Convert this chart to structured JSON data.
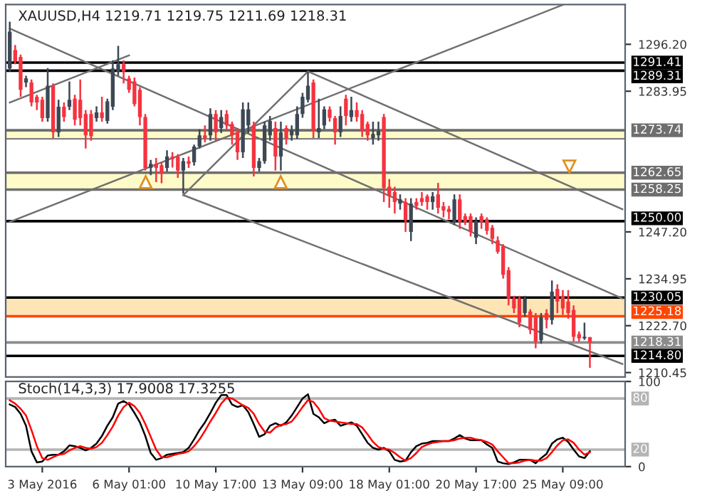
{
  "chart_data": [
    {
      "type": "candlestick",
      "title": "XAUUSD,H4 1219.71 1219.75 1211.69 1218.31",
      "tick_labels": "y",
      "grid": false,
      "legend": false,
      "categories": [
        null,
        null,
        null,
        null,
        null,
        null,
        null,
        null,
        null,
        null,
        null,
        null,
        null,
        null,
        null,
        null,
        null,
        null,
        null,
        null,
        null,
        null,
        null,
        null,
        null,
        null,
        null,
        null,
        null,
        null,
        null,
        null,
        null,
        null,
        null,
        null,
        null,
        null,
        null,
        null,
        null,
        null,
        null,
        null,
        null,
        null,
        null,
        null,
        null,
        null,
        null,
        null,
        null,
        null,
        null,
        null,
        null,
        null,
        null,
        null,
        null,
        null,
        null,
        null,
        null,
        null,
        null,
        null,
        null,
        null,
        null,
        null,
        null,
        null,
        null,
        null,
        null,
        null,
        null,
        null,
        null,
        null,
        null,
        null,
        null,
        null,
        null,
        null,
        null,
        null,
        null,
        null,
        null,
        null,
        null,
        null,
        null,
        null,
        null,
        null,
        null,
        null,
        null,
        null,
        null,
        null,
        null,
        null,
        null,
        null,
        null,
        null,
        null,
        null
      ],
      "ohlc": [
        [
          1289.9,
          1302.1,
          1289.1,
          1299.5
        ],
        [
          1294.7,
          1296.0,
          1291.0,
          1291.8
        ],
        [
          1292.9,
          1293.5,
          1282.5,
          1284.3
        ],
        [
          1286.2,
          1288.0,
          1285.0,
          1287.3
        ],
        [
          1286.2,
          1287.0,
          1280.0,
          1281.0
        ],
        [
          1282.5,
          1283.0,
          1279.0,
          1281.0
        ],
        [
          1281.7,
          1282.5,
          1276.0,
          1276.9
        ],
        [
          1276.9,
          1290.0,
          1276.0,
          1285.4
        ],
        [
          1285.4,
          1286.0,
          1271.7,
          1273.2
        ],
        [
          1273.2,
          1281.7,
          1272.0,
          1279.9
        ],
        [
          1279.9,
          1281.0,
          1276.0,
          1277.2
        ],
        [
          1279.9,
          1286.5,
          1279.0,
          1281.7
        ],
        [
          1282.0,
          1283.0,
          1275.0,
          1276.5
        ],
        [
          1281.7,
          1287.0,
          1275.0,
          1276.9
        ],
        [
          1278.0,
          1279.0,
          1269.0,
          1272.4
        ],
        [
          1278.0,
          1279.0,
          1271.0,
          1272.2
        ],
        [
          1276.9,
          1280.0,
          1276.0,
          1278.4
        ],
        [
          1278.4,
          1282.5,
          1276.0,
          1276.9
        ],
        [
          1276.2,
          1282.0,
          1275.5,
          1281.3
        ],
        [
          1279.9,
          1292.0,
          1279.0,
          1289.9
        ],
        [
          1289.1,
          1295.8,
          1288.0,
          1291.0
        ],
        [
          1291.0,
          1292.0,
          1286.0,
          1289.1
        ],
        [
          1287.3,
          1288.0,
          1283.5,
          1284.3
        ],
        [
          1286.5,
          1287.5,
          1280.0,
          1280.6
        ],
        [
          1284.3,
          1285.0,
          1275.0,
          1277.2
        ],
        [
          1277.2,
          1278.0,
          1263.2,
          1263.9
        ],
        [
          1263.9,
          1266.0,
          1262.0,
          1265.0
        ],
        [
          1265.0,
          1266.5,
          1260.2,
          1263.9
        ],
        [
          1264.6,
          1265.5,
          1259.9,
          1262.5
        ],
        [
          1263.9,
          1268.5,
          1263.0,
          1266.9
        ],
        [
          1266.9,
          1268.0,
          1264.0,
          1266.2
        ],
        [
          1266.9,
          1267.5,
          1261.3,
          1263.2
        ],
        [
          1263.2,
          1266.5,
          1257.2,
          1265.7
        ],
        [
          1265.7,
          1266.9,
          1263.9,
          1265.0
        ],
        [
          1265.4,
          1270.0,
          1264.5,
          1269.5
        ],
        [
          1269.5,
          1274.0,
          1269.0,
          1272.4
        ],
        [
          1272.4,
          1275.0,
          1270.6,
          1271.7
        ],
        [
          1272.4,
          1279.5,
          1271.0,
          1278.0
        ],
        [
          1278.0,
          1279.0,
          1271.0,
          1273.2
        ],
        [
          1274.3,
          1279.0,
          1273.0,
          1277.2
        ],
        [
          1278.0,
          1279.0,
          1274.0,
          1275.0
        ],
        [
          1275.4,
          1276.0,
          1270.0,
          1272.4
        ],
        [
          1273.2,
          1274.3,
          1266.0,
          1268.0
        ],
        [
          1268.0,
          1281.0,
          1266.5,
          1279.2
        ],
        [
          1275.0,
          1281.0,
          1273.0,
          1279.2
        ],
        [
          1275.0,
          1276.0,
          1261.7,
          1263.9
        ],
        [
          1263.9,
          1266.5,
          1263.0,
          1265.7
        ],
        [
          1265.7,
          1276.0,
          1265.0,
          1275.0
        ],
        [
          1272.4,
          1277.5,
          1271.0,
          1276.2
        ],
        [
          1274.3,
          1276.0,
          1263.2,
          1266.9
        ],
        [
          1266.9,
          1276.0,
          1263.2,
          1273.2
        ],
        [
          1274.3,
          1275.0,
          1270.0,
          1271.7
        ],
        [
          1272.4,
          1275.0,
          1271.0,
          1273.7
        ],
        [
          1272.4,
          1280.0,
          1271.5,
          1278.0
        ],
        [
          1278.0,
          1283.5,
          1277.0,
          1282.5
        ],
        [
          1281.7,
          1289.1,
          1281.0,
          1285.4
        ],
        [
          1286.2,
          1287.0,
          1271.7,
          1273.6
        ],
        [
          1273.2,
          1282.0,
          1271.7,
          1274.3
        ],
        [
          1275.0,
          1280.0,
          1274.0,
          1279.2
        ],
        [
          1279.2,
          1280.0,
          1276.0,
          1277.0
        ],
        [
          1276.9,
          1277.5,
          1270.0,
          1273.2
        ],
        [
          1273.2,
          1280.0,
          1272.0,
          1277.5
        ],
        [
          1282.0,
          1283.0,
          1275.0,
          1277.5
        ],
        [
          1277.2,
          1282.5,
          1276.0,
          1279.0
        ],
        [
          1279.0,
          1281.0,
          1276.0,
          1277.2
        ],
        [
          1278.0,
          1279.0,
          1272.0,
          1273.6
        ],
        [
          1275.4,
          1276.0,
          1271.0,
          1272.4
        ],
        [
          1271.7,
          1276.0,
          1270.0,
          1272.8
        ],
        [
          1272.4,
          1276.0,
          1271.0,
          1273.6
        ],
        [
          1277.2,
          1278.0,
          1255.0,
          1258.7
        ],
        [
          1259.0,
          1261.0,
          1253.5,
          1256.5
        ],
        [
          1257.6,
          1259.0,
          1252.0,
          1255.0
        ],
        [
          1254.6,
          1257.0,
          1253.0,
          1255.7
        ],
        [
          1255.0,
          1256.0,
          1247.2,
          1250.2
        ],
        [
          1247.2,
          1256.0,
          1244.8,
          1254.6
        ],
        [
          1255.0,
          1256.0,
          1253.0,
          1254.0
        ],
        [
          1256.0,
          1257.6,
          1254.0,
          1255.0
        ],
        [
          1256.5,
          1257.0,
          1253.0,
          1255.0
        ],
        [
          1255.0,
          1257.6,
          1253.0,
          1256.5
        ],
        [
          1257.0,
          1260.0,
          1252.0,
          1253.5
        ],
        [
          1253.9,
          1255.0,
          1251.0,
          1252.8
        ],
        [
          1253.2,
          1254.0,
          1250.5,
          1252.4
        ],
        [
          1249.8,
          1257.0,
          1249.0,
          1255.7
        ],
        [
          1255.7,
          1257.0,
          1248.0,
          1249.8
        ],
        [
          1251.3,
          1252.0,
          1249.0,
          1249.8
        ],
        [
          1251.3,
          1252.0,
          1246.0,
          1247.2
        ],
        [
          1245.7,
          1251.0,
          1244.0,
          1250.0
        ],
        [
          1251.3,
          1252.0,
          1248.0,
          1249.8
        ],
        [
          1250.5,
          1251.0,
          1246.5,
          1247.5
        ],
        [
          1248.3,
          1249.0,
          1244.0,
          1245.4
        ],
        [
          1245.0,
          1246.0,
          1241.5,
          1242.0
        ],
        [
          1243.4,
          1244.0,
          1235.0,
          1236.0
        ],
        [
          1237.2,
          1238.0,
          1228.0,
          1229.8
        ],
        [
          1229.8,
          1230.5,
          1226.0,
          1227.2
        ],
        [
          1229.8,
          1230.5,
          1222.3,
          1223.5
        ],
        [
          1226.0,
          1230.5,
          1225.0,
          1229.8
        ],
        [
          1226.4,
          1227.0,
          1220.5,
          1221.6
        ],
        [
          1224.9,
          1226.0,
          1216.8,
          1218.6
        ],
        [
          1218.9,
          1226.0,
          1218.0,
          1224.9
        ],
        [
          1226.0,
          1227.0,
          1222.0,
          1224.2
        ],
        [
          1224.2,
          1234.5,
          1223.0,
          1231.6
        ],
        [
          1232.3,
          1233.5,
          1226.0,
          1229.0
        ],
        [
          1230.5,
          1232.0,
          1225.5,
          1227.2
        ],
        [
          1229.0,
          1232.0,
          1224.5,
          1226.0
        ],
        [
          1226.8,
          1228.0,
          1218.6,
          1219.8
        ],
        [
          1220.5,
          1221.2,
          1218.6,
          1219.4
        ],
        [
          1219.4,
          1223.5,
          1219.0,
          1219.8
        ],
        [
          1219.71,
          1219.75,
          1211.69,
          1218.31
        ],
        null,
        null,
        null,
        null,
        null,
        null
      ],
      "colors": [
        "#3d4855",
        "#f5333f",
        "#f5333f",
        "#3d4855",
        "#f5333f",
        "#f5333f",
        "#f5333f",
        "#3d4855",
        "#f5333f",
        "#3d4855",
        "#f5333f",
        "#3d4855",
        "#f5333f",
        "#f5333f",
        "#f5333f",
        "#f5333f",
        "#3d4855",
        "#f5333f",
        "#3d4855",
        "#3d4855",
        "#3d4855",
        "#f5333f",
        "#f5333f",
        "#f5333f",
        "#f5333f",
        "#f5333f",
        "#3d4855",
        "#f5333f",
        "#f5333f",
        "#3d4855",
        "#f5333f",
        "#f5333f",
        "#3d4855",
        "#f5333f",
        "#3d4855",
        "#3d4855",
        "#f5333f",
        "#3d4855",
        "#f5333f",
        "#3d4855",
        "#f5333f",
        "#f5333f",
        "#f5333f",
        "#3d4855",
        "#3d4855",
        "#f5333f",
        "#3d4855",
        "#3d4855",
        "#3d4855",
        "#f5333f",
        "#3d4855",
        "#f5333f",
        "#3d4855",
        "#3d4855",
        "#3d4855",
        "#3d4855",
        "#f5333f",
        "#3d4855",
        "#3d4855",
        "#f5333f",
        "#f5333f",
        "#3d4855",
        "#f5333f",
        "#3d4855",
        "#f5333f",
        "#f5333f",
        "#f5333f",
        "#3d4855",
        "#3d4855",
        "#f5333f",
        "#f5333f",
        "#f5333f",
        "#3d4855",
        "#f5333f",
        "#3d4855",
        "#f5333f",
        "#f5333f",
        "#f5333f",
        "#3d4855",
        "#f5333f",
        "#f5333f",
        "#f5333f",
        "#3d4855",
        "#f5333f",
        "#f5333f",
        "#f5333f",
        "#3d4855",
        "#f5333f",
        "#f5333f",
        "#f5333f",
        "#f5333f",
        "#f5333f",
        "#f5333f",
        "#f5333f",
        "#f5333f",
        "#3d4855",
        "#f5333f",
        "#f5333f",
        "#3d4855",
        "#f5333f",
        "#3d4855",
        "#f5333f",
        "#f5333f",
        "#f5333f",
        "#f5333f",
        "#f5333f",
        "#3d4855",
        "#f5333f",
        null,
        null,
        null,
        null,
        null,
        null
      ],
      "series": [
        {
          "type": "line",
          "color": "#707070",
          "values": [
            1281.0,
            null,
            null,
            null,
            null,
            null,
            null,
            null,
            null,
            null,
            null,
            null,
            null,
            null,
            null,
            null,
            null,
            null,
            null,
            null,
            null,
            null,
            1293.3,
            null,
            null,
            null,
            null,
            null,
            null,
            null,
            null,
            null,
            null,
            null,
            null,
            null,
            null,
            null,
            null,
            null,
            null,
            null,
            null,
            null,
            null,
            null,
            null,
            null,
            null,
            null,
            null,
            null,
            null,
            null,
            null,
            null,
            null,
            null,
            null,
            null,
            null,
            null,
            null,
            null,
            null,
            null,
            null,
            null,
            null,
            null,
            null,
            null,
            null,
            null,
            null,
            null,
            null,
            null,
            null,
            null,
            null,
            null,
            null,
            null,
            null,
            null,
            null,
            null,
            null,
            null,
            null,
            null,
            null,
            null,
            null,
            null,
            null,
            null,
            null,
            null,
            null,
            null,
            null,
            null,
            null,
            null,
            null,
            null,
            null,
            null,
            null,
            null,
            null,
            null
          ]
        },
        {
          "type": "line",
          "color": "#707070",
          "values": [
            1249.8,
            null,
            null,
            null,
            null,
            null,
            null,
            null,
            null,
            null,
            null,
            null,
            null,
            null,
            null,
            null,
            null,
            null,
            null,
            null,
            null,
            null,
            null,
            null,
            null,
            null,
            null,
            null,
            null,
            null,
            null,
            null,
            null,
            null,
            null,
            null,
            null,
            null,
            null,
            null,
            null,
            null,
            null,
            null,
            null,
            null,
            null,
            null,
            null,
            null,
            null,
            null,
            null,
            null,
            null,
            null,
            null,
            null,
            null,
            null,
            null,
            null,
            null,
            null,
            null,
            null,
            null,
            null,
            null,
            null,
            null,
            null,
            null,
            null,
            null,
            null,
            null,
            null,
            null,
            null,
            null,
            null,
            null,
            null,
            null,
            null,
            null,
            null,
            null,
            null,
            null,
            null,
            null,
            null,
            null,
            null,
            null,
            null,
            null,
            null,
            null,
            null,
            1306.5,
            null,
            null,
            null,
            null,
            null,
            null,
            null,
            null,
            null,
            null,
            null
          ]
        },
        {
          "type": "line",
          "color": "#707070",
          "values": [
            1300.3,
            null,
            null,
            null,
            null,
            null,
            null,
            null,
            null,
            null,
            null,
            null,
            null,
            null,
            null,
            null,
            null,
            null,
            null,
            null,
            null,
            null,
            null,
            null,
            null,
            null,
            null,
            null,
            null,
            null,
            null,
            null,
            null,
            null,
            null,
            null,
            null,
            null,
            null,
            null,
            null,
            null,
            null,
            null,
            null,
            null,
            null,
            null,
            null,
            null,
            null,
            null,
            null,
            null,
            null,
            null,
            null,
            null,
            null,
            null,
            null,
            null,
            null,
            null,
            null,
            null,
            null,
            null,
            null,
            null,
            null,
            null,
            null,
            null,
            null,
            null,
            null,
            null,
            null,
            null,
            null,
            null,
            null,
            null,
            null,
            null,
            null,
            null,
            null,
            null,
            null,
            null,
            null,
            null,
            null,
            null,
            null,
            null,
            null,
            null,
            null,
            null,
            null,
            null,
            null,
            null,
            null,
            null,
            null,
            null,
            null,
            null,
            null,
            1229.8
          ]
        },
        {
          "type": "line",
          "color": "#707070",
          "values": [
            null,
            null,
            null,
            null,
            null,
            null,
            null,
            null,
            null,
            null,
            null,
            null,
            null,
            null,
            null,
            null,
            null,
            null,
            null,
            null,
            null,
            null,
            null,
            null,
            null,
            null,
            null,
            null,
            null,
            null,
            null,
            null,
            1256.8,
            null,
            null,
            null,
            null,
            null,
            null,
            null,
            null,
            null,
            null,
            null,
            null,
            null,
            null,
            null,
            null,
            null,
            null,
            null,
            null,
            null,
            null,
            1289.1,
            null,
            null,
            null,
            null,
            null,
            null,
            null,
            null,
            null,
            null,
            null,
            null,
            null,
            null,
            null,
            null,
            null,
            null,
            null,
            null,
            null,
            null,
            null,
            null,
            null,
            null,
            null,
            null,
            null,
            null,
            null,
            null,
            null,
            null,
            null,
            null,
            null,
            null,
            null,
            null,
            null,
            null,
            null,
            null,
            null,
            null,
            null,
            null,
            null,
            null,
            null,
            null,
            null,
            null,
            null,
            null,
            null,
            null
          ]
        },
        {
          "type": "line",
          "color": "#707070",
          "values": [
            null,
            null,
            null,
            null,
            null,
            null,
            null,
            null,
            null,
            null,
            null,
            null,
            null,
            null,
            null,
            null,
            null,
            null,
            null,
            null,
            null,
            null,
            null,
            null,
            null,
            null,
            null,
            null,
            null,
            null,
            null,
            null,
            null,
            null,
            null,
            null,
            null,
            null,
            null,
            null,
            null,
            null,
            null,
            null,
            null,
            null,
            null,
            null,
            null,
            null,
            null,
            null,
            null,
            null,
            null,
            1289.1,
            null,
            null,
            null,
            null,
            null,
            null,
            null,
            null,
            null,
            null,
            null,
            null,
            null,
            null,
            null,
            null,
            null,
            null,
            null,
            null,
            null,
            null,
            null,
            null,
            null,
            null,
            null,
            null,
            null,
            null,
            null,
            null,
            null,
            null,
            null,
            null,
            null,
            null,
            null,
            null,
            null,
            null,
            null,
            null,
            null,
            null,
            null,
            null,
            null,
            null,
            null,
            null,
            null,
            null,
            null,
            null,
            null,
            1253.1
          ]
        },
        {
          "type": "line",
          "color": "#707070",
          "values": [
            null,
            null,
            null,
            null,
            null,
            null,
            null,
            null,
            null,
            null,
            null,
            null,
            null,
            null,
            null,
            null,
            null,
            null,
            null,
            null,
            null,
            null,
            null,
            null,
            null,
            null,
            null,
            null,
            null,
            null,
            null,
            null,
            1256.8,
            null,
            null,
            null,
            null,
            null,
            null,
            null,
            null,
            null,
            null,
            null,
            null,
            null,
            null,
            null,
            null,
            null,
            null,
            null,
            null,
            null,
            null,
            null,
            null,
            null,
            null,
            null,
            null,
            null,
            null,
            null,
            null,
            null,
            null,
            null,
            null,
            null,
            null,
            null,
            null,
            null,
            null,
            null,
            null,
            null,
            null,
            null,
            null,
            null,
            null,
            null,
            null,
            null,
            null,
            null,
            null,
            null,
            null,
            null,
            null,
            null,
            null,
            null,
            null,
            null,
            null,
            null,
            null,
            null,
            null,
            null,
            null,
            null,
            null,
            null,
            null,
            null,
            null,
            null,
            null,
            1212.7
          ]
        }
      ],
      "ylim": [
        1209.3,
        1306.6
      ],
      "yticks": [
        {
          "value": 1296.2,
          "label": "1296.20"
        },
        {
          "value": 1283.95,
          "label": "1283.95"
        },
        {
          "value": 1247.2,
          "label": "1247.20"
        },
        {
          "value": 1234.95,
          "label": "1234.95"
        },
        {
          "value": 1222.7,
          "label": "1222.70"
        },
        {
          "value": 1210.45,
          "label": "1210.45"
        }
      ],
      "bands": [
        {
          "axis": "y",
          "from": 1271.5,
          "to": 1273.74,
          "color": "#fffbc8"
        },
        {
          "axis": "y",
          "from": 1258.25,
          "to": 1262.65,
          "color": "#fffbc8"
        },
        {
          "axis": "y",
          "from": 1225.18,
          "to": 1230.05,
          "color": "#fde5b5"
        }
      ],
      "ref_lines": [
        {
          "axis": "y",
          "value": 1291.41,
          "label": "1291.41",
          "color": "#000000"
        },
        {
          "axis": "y",
          "value": 1289.31,
          "label": "1289.31",
          "color": "#000000"
        },
        {
          "axis": "y",
          "value": 1273.74,
          "label": "1273.74",
          "color": "#6e6e6e"
        },
        {
          "axis": "y",
          "value": 1262.65,
          "label": "1262.65",
          "color": "#6e6e6e"
        },
        {
          "axis": "y",
          "value": 1258.25,
          "label": "1258.25",
          "color": "#6e6e6e"
        },
        {
          "axis": "y",
          "value": 1250.0,
          "label": "1250.00",
          "color": "#000000"
        },
        {
          "axis": "y",
          "value": 1230.05,
          "label": "1230.05",
          "color": "#000000"
        },
        {
          "axis": "y",
          "value": 1225.18,
          "label": "1225.18",
          "color": "#ff4500"
        },
        {
          "axis": "y",
          "value": 1218.31,
          "label": "1218.31",
          "color": "#8c8c8c"
        },
        {
          "axis": "y",
          "value": 1214.8,
          "label": "1214.80",
          "color": "#000000"
        }
      ]
    },
    {
      "type": "line",
      "title": "Stoch(14,3,3) 17.9008 17.3255",
      "grid": false,
      "legend": false,
      "categories": [
        null,
        null,
        null,
        null,
        null,
        null,
        "3 May 2016",
        null,
        null,
        null,
        null,
        null,
        null,
        null,
        null,
        null,
        null,
        null,
        null,
        null,
        null,
        null,
        "6 May 01:00",
        null,
        null,
        null,
        null,
        null,
        null,
        null,
        null,
        null,
        null,
        null,
        null,
        null,
        null,
        null,
        "10 May 17:00",
        null,
        null,
        null,
        null,
        null,
        null,
        null,
        null,
        null,
        null,
        null,
        null,
        null,
        null,
        null,
        "13 May 09:00",
        null,
        null,
        null,
        null,
        null,
        null,
        null,
        null,
        null,
        null,
        null,
        null,
        null,
        null,
        null,
        "18 May 01:00",
        null,
        null,
        null,
        null,
        null,
        null,
        null,
        null,
        null,
        null,
        null,
        null,
        null,
        null,
        null,
        "20 May 17:00",
        null,
        null,
        null,
        null,
        null,
        null,
        null,
        null,
        null,
        null,
        null,
        null,
        null,
        null,
        null,
        "25 May 09:00",
        null,
        null,
        null,
        null,
        null,
        null,
        null,
        null,
        null,
        null,
        null
      ],
      "series": [
        {
          "color": "#000000",
          "values": [
            73,
            70,
            62,
            48,
            18,
            5,
            6,
            13,
            14,
            14,
            18,
            25,
            24,
            22,
            19,
            22,
            27,
            36,
            48,
            58,
            74,
            77,
            73,
            63,
            52,
            36,
            16,
            8,
            10,
            14,
            15,
            16,
            17,
            22,
            32,
            43,
            52,
            63,
            75,
            84,
            84,
            73,
            70,
            72,
            64,
            50,
            35,
            38,
            48,
            51,
            48,
            52,
            60,
            70,
            80,
            85,
            62,
            58,
            51,
            54,
            55,
            48,
            50,
            52,
            48,
            38,
            28,
            22,
            20,
            22,
            18,
            8,
            6,
            7,
            17,
            24,
            27,
            28,
            30,
            30,
            30,
            30,
            33,
            37,
            33,
            31,
            31,
            31,
            26,
            22,
            6,
            4,
            3,
            5,
            8,
            8,
            8,
            4,
            10,
            15,
            27,
            32,
            34,
            29,
            20,
            12,
            10,
            18,
            null,
            null,
            null,
            null,
            null,
            null
          ]
        },
        {
          "color": "#ff0000",
          "values": [
            78,
            74,
            68,
            60,
            43,
            24,
            10,
            8,
            11,
            14,
            15,
            19,
            22,
            24,
            22,
            21,
            23,
            28,
            37,
            47,
            60,
            70,
            75,
            71,
            63,
            50,
            35,
            20,
            11,
            11,
            13,
            15,
            16,
            18,
            24,
            32,
            42,
            53,
            63,
            74,
            81,
            80,
            76,
            72,
            69,
            62,
            50,
            41,
            40,
            46,
            49,
            50,
            53,
            61,
            70,
            78,
            76,
            68,
            57,
            54,
            53,
            52,
            51,
            50,
            50,
            46,
            38,
            29,
            23,
            21,
            20,
            16,
            11,
            7,
            10,
            16,
            23,
            26,
            28,
            29,
            30,
            30,
            31,
            33,
            34,
            34,
            32,
            31,
            29,
            26,
            18,
            11,
            4,
            4,
            5,
            7,
            8,
            7,
            7,
            10,
            17,
            25,
            31,
            32,
            28,
            20,
            14,
            17,
            null,
            null,
            null,
            null,
            null,
            null
          ]
        }
      ],
      "ylim": [
        0,
        100
      ],
      "yticks": [
        0,
        100
      ],
      "ref_lines": [
        {
          "axis": "y",
          "value": 80,
          "label": "80",
          "color": "#b4b4b4"
        },
        {
          "axis": "y",
          "value": 20,
          "label": "20",
          "color": "#b4b4b4"
        }
      ]
    }
  ]
}
